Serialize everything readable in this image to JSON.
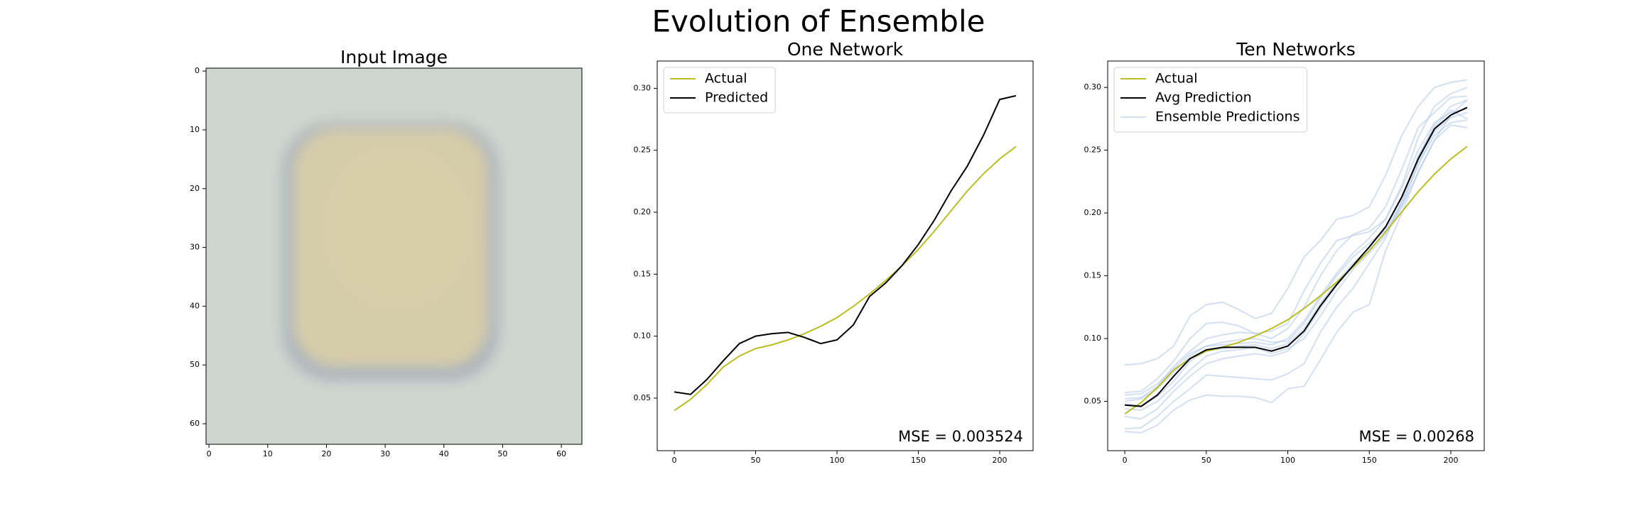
{
  "title": "Evolution of Ensemble",
  "chart_data": [
    {
      "type": "image",
      "title": "Input Image",
      "xlim": [
        -0.5,
        63.5
      ],
      "ylim": [
        63.5,
        -0.5
      ],
      "xticks": [
        0,
        10,
        20,
        30,
        40,
        50,
        60
      ],
      "yticks": [
        0,
        10,
        20,
        30,
        40,
        50,
        60
      ]
    },
    {
      "type": "line",
      "title": "One Network",
      "x": [
        0,
        10,
        20,
        30,
        40,
        50,
        60,
        70,
        80,
        90,
        100,
        110,
        120,
        130,
        140,
        150,
        160,
        170,
        180,
        190,
        200,
        210
      ],
      "series": [
        {
          "name": "Actual",
          "color": "#bcbd22",
          "values": [
            0.04,
            0.049,
            0.061,
            0.075,
            0.084,
            0.09,
            0.093,
            0.097,
            0.102,
            0.108,
            0.115,
            0.124,
            0.134,
            0.145,
            0.157,
            0.17,
            0.185,
            0.201,
            0.217,
            0.231,
            0.243,
            0.253
          ]
        },
        {
          "name": "Predicted",
          "color": "#000000",
          "values": [
            0.055,
            0.053,
            0.065,
            0.08,
            0.094,
            0.1,
            0.102,
            0.103,
            0.099,
            0.094,
            0.097,
            0.109,
            0.132,
            0.143,
            0.157,
            0.174,
            0.194,
            0.217,
            0.237,
            0.262,
            0.291,
            0.294
          ]
        }
      ],
      "xlim": [
        -10.5,
        220.5
      ],
      "ylim": [
        0.0076,
        0.322
      ],
      "xticks": [
        0,
        50,
        100,
        150,
        200
      ],
      "yticks": [
        0.05,
        {
          "value": 0.1,
          "label": "0.10"
        },
        0.15,
        {
          "value": 0.2,
          "label": "0.20"
        },
        0.25,
        {
          "value": 0.3,
          "label": "0.30"
        }
      ],
      "annotation": "MSE = 0.003524",
      "legend": "upper left"
    },
    {
      "type": "line",
      "title": "Ten Networks",
      "x": [
        0,
        10,
        20,
        30,
        40,
        50,
        60,
        70,
        80,
        90,
        100,
        110,
        120,
        130,
        140,
        150,
        160,
        170,
        180,
        190,
        200,
        210
      ],
      "ensemble": {
        "name": "Ensemble Predictions",
        "color": "#aec7e8",
        "series": [
          [
            0.079,
            0.08,
            0.084,
            0.094,
            0.118,
            0.127,
            0.129,
            0.123,
            0.116,
            0.12,
            0.14,
            0.165,
            0.178,
            0.195,
            0.198,
            0.205,
            0.23,
            0.262,
            0.285,
            0.3,
            0.304,
            0.306
          ],
          [
            0.026,
            0.025,
            0.031,
            0.043,
            0.051,
            0.055,
            0.054,
            0.054,
            0.053,
            0.049,
            0.06,
            0.062,
            0.083,
            0.105,
            0.121,
            0.127,
            0.17,
            0.2,
            0.233,
            0.258,
            0.278,
            0.29
          ],
          [
            0.028,
            0.029,
            0.038,
            0.05,
            0.06,
            0.071,
            0.07,
            0.069,
            0.068,
            0.067,
            0.072,
            0.08,
            0.105,
            0.125,
            0.14,
            0.16,
            0.18,
            0.21,
            0.245,
            0.268,
            0.282,
            0.275
          ],
          [
            0.052,
            0.053,
            0.062,
            0.078,
            0.09,
            0.1,
            0.103,
            0.105,
            0.104,
            0.106,
            0.112,
            0.138,
            0.16,
            0.178,
            0.182,
            0.185,
            0.195,
            0.222,
            0.26,
            0.285,
            0.295,
            0.3
          ],
          [
            0.057,
            0.058,
            0.068,
            0.082,
            0.1,
            0.112,
            0.113,
            0.11,
            0.104,
            0.1,
            0.108,
            0.125,
            0.15,
            0.17,
            0.183,
            0.188,
            0.205,
            0.235,
            0.268,
            0.28,
            0.292,
            0.293
          ],
          [
            0.044,
            0.043,
            0.05,
            0.062,
            0.075,
            0.086,
            0.09,
            0.091,
            0.093,
            0.088,
            0.092,
            0.1,
            0.118,
            0.138,
            0.155,
            0.168,
            0.182,
            0.205,
            0.232,
            0.258,
            0.27,
            0.268
          ],
          [
            0.05,
            0.052,
            0.06,
            0.073,
            0.086,
            0.094,
            0.097,
            0.099,
            0.1,
            0.097,
            0.098,
            0.112,
            0.132,
            0.15,
            0.165,
            0.176,
            0.186,
            0.208,
            0.24,
            0.265,
            0.276,
            0.28
          ],
          [
            0.048,
            0.046,
            0.054,
            0.066,
            0.082,
            0.09,
            0.092,
            0.094,
            0.095,
            0.092,
            0.096,
            0.108,
            0.128,
            0.145,
            0.16,
            0.172,
            0.188,
            0.212,
            0.245,
            0.27,
            0.285,
            0.29
          ],
          [
            0.055,
            0.056,
            0.064,
            0.076,
            0.088,
            0.094,
            0.095,
            0.096,
            0.097,
            0.095,
            0.1,
            0.114,
            0.134,
            0.152,
            0.168,
            0.18,
            0.195,
            0.22,
            0.25,
            0.272,
            0.28,
            0.283
          ],
          [
            0.038,
            0.036,
            0.044,
            0.058,
            0.07,
            0.08,
            0.084,
            0.086,
            0.088,
            0.086,
            0.09,
            0.104,
            0.124,
            0.142,
            0.158,
            0.17,
            0.184,
            0.206,
            0.238,
            0.262,
            0.272,
            0.274
          ]
        ]
      },
      "series": [
        {
          "name": "Actual",
          "color": "#bcbd22",
          "values": [
            0.04,
            0.049,
            0.061,
            0.075,
            0.084,
            0.09,
            0.093,
            0.097,
            0.102,
            0.108,
            0.115,
            0.124,
            0.134,
            0.145,
            0.157,
            0.17,
            0.185,
            0.201,
            0.217,
            0.231,
            0.243,
            0.253
          ]
        },
        {
          "name": "Avg Prediction",
          "color": "#000000",
          "values": [
            0.047,
            0.046,
            0.055,
            0.07,
            0.084,
            0.091,
            0.093,
            0.093,
            0.093,
            0.09,
            0.094,
            0.106,
            0.126,
            0.143,
            0.158,
            0.173,
            0.189,
            0.213,
            0.243,
            0.267,
            0.278,
            0.284
          ]
        }
      ],
      "xlim": [
        -10.5,
        220.5
      ],
      "ylim": [
        0.0107,
        0.321
      ],
      "xticks": [
        0,
        50,
        100,
        150,
        200
      ],
      "yticks": [
        0.05,
        {
          "value": 0.1,
          "label": "0.10"
        },
        0.15,
        {
          "value": 0.2,
          "label": "0.20"
        },
        0.25,
        {
          "value": 0.3,
          "label": "0.30"
        }
      ],
      "annotation": "MSE = 0.00268",
      "legend": "upper left"
    }
  ]
}
